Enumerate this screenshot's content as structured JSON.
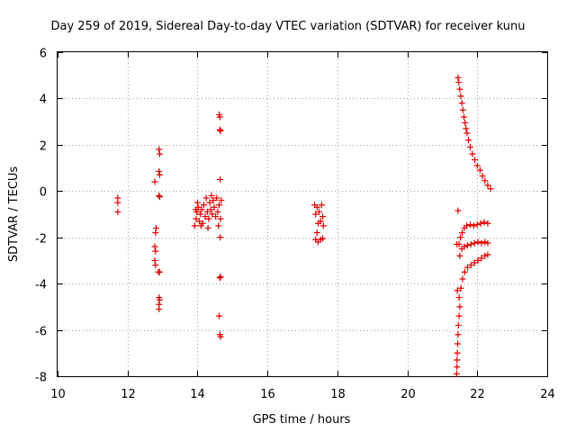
{
  "chart_data": {
    "type": "scatter",
    "title": "Day 259 of 2019, Sidereal Day-to-day VTEC variation (SDTVAR) for receiver kunu",
    "xlabel": "GPS time / hours",
    "ylabel": "SDTVAR / TECUs",
    "xlim": [
      10,
      24
    ],
    "ylim": [
      -8,
      6
    ],
    "xticks": [
      "10",
      "12",
      "14",
      "16",
      "18",
      "20",
      "22",
      "24"
    ],
    "yticks": [
      "-8",
      "-6",
      "-4",
      "-2",
      "0",
      "2",
      "4",
      "6"
    ],
    "grid": true,
    "marker": "plus",
    "color": "#e00000",
    "series": [
      {
        "name": "SDTVAR",
        "points": [
          [
            11.72,
            -0.3
          ],
          [
            11.72,
            -0.5
          ],
          [
            11.72,
            -0.9
          ],
          [
            12.78,
            0.4
          ],
          [
            12.82,
            -1.6
          ],
          [
            12.8,
            -1.8
          ],
          [
            12.78,
            -2.4
          ],
          [
            12.8,
            -2.6
          ],
          [
            12.78,
            -3.0
          ],
          [
            12.8,
            -3.2
          ],
          [
            12.9,
            1.8
          ],
          [
            12.92,
            1.6
          ],
          [
            12.9,
            0.85
          ],
          [
            12.92,
            0.7
          ],
          [
            12.9,
            -0.2
          ],
          [
            12.92,
            -0.25
          ],
          [
            12.88,
            -3.5
          ],
          [
            12.92,
            -3.5
          ],
          [
            12.9,
            -4.6
          ],
          [
            12.92,
            -4.7
          ],
          [
            12.9,
            -4.9
          ],
          [
            12.9,
            -5.1
          ],
          [
            13.92,
            -1.5
          ],
          [
            13.96,
            -1.2
          ],
          [
            13.98,
            -0.9
          ],
          [
            14.02,
            -0.7
          ],
          [
            14.05,
            -1.3
          ],
          [
            14.08,
            -1.0
          ],
          [
            14.12,
            -0.8
          ],
          [
            14.15,
            -1.4
          ],
          [
            14.18,
            -0.6
          ],
          [
            14.22,
            -1.1
          ],
          [
            14.25,
            -0.3
          ],
          [
            14.28,
            -0.9
          ],
          [
            14.32,
            -1.2
          ],
          [
            14.35,
            -0.5
          ],
          [
            14.38,
            -0.8
          ],
          [
            14.42,
            -1.0
          ],
          [
            14.45,
            -0.4
          ],
          [
            14.48,
            -0.7
          ],
          [
            14.52,
            -1.1
          ],
          [
            14.55,
            -0.3
          ],
          [
            14.58,
            -0.9
          ],
          [
            14.62,
            -0.6
          ],
          [
            14.66,
            -1.2
          ],
          [
            14.68,
            -0.4
          ],
          [
            14.0,
            -0.5
          ],
          [
            14.1,
            -1.5
          ],
          [
            14.3,
            -1.6
          ],
          [
            14.4,
            -0.2
          ],
          [
            14.6,
            -1.5
          ],
          [
            13.95,
            -0.8
          ],
          [
            14.62,
            3.3
          ],
          [
            14.64,
            3.2
          ],
          [
            14.64,
            2.65
          ],
          [
            14.66,
            2.6
          ],
          [
            14.65,
            0.5
          ],
          [
            14.65,
            -2.0
          ],
          [
            14.66,
            -3.7
          ],
          [
            14.64,
            -3.75
          ],
          [
            14.62,
            -5.4
          ],
          [
            14.64,
            -6.2
          ],
          [
            14.66,
            -6.3
          ],
          [
            17.35,
            -0.6
          ],
          [
            17.38,
            -1.0
          ],
          [
            17.42,
            -0.7
          ],
          [
            17.45,
            -1.4
          ],
          [
            17.48,
            -0.9
          ],
          [
            17.52,
            -1.3
          ],
          [
            17.55,
            -0.6
          ],
          [
            17.58,
            -1.1
          ],
          [
            17.6,
            -1.5
          ],
          [
            17.42,
            -1.8
          ],
          [
            17.38,
            -2.1
          ],
          [
            17.45,
            -2.2
          ],
          [
            17.52,
            -2.1
          ],
          [
            17.58,
            -2.05
          ],
          [
            21.45,
            4.9
          ],
          [
            21.47,
            4.7
          ],
          [
            21.5,
            4.4
          ],
          [
            21.53,
            4.1
          ],
          [
            21.56,
            3.8
          ],
          [
            21.59,
            3.5
          ],
          [
            21.62,
            3.2
          ],
          [
            21.65,
            2.95
          ],
          [
            21.68,
            2.7
          ],
          [
            21.71,
            2.5
          ],
          [
            21.75,
            2.2
          ],
          [
            21.8,
            1.9
          ],
          [
            21.86,
            1.6
          ],
          [
            21.93,
            1.35
          ],
          [
            22.0,
            1.1
          ],
          [
            22.08,
            0.9
          ],
          [
            22.15,
            0.65
          ],
          [
            22.22,
            0.45
          ],
          [
            22.3,
            0.25
          ],
          [
            22.38,
            0.1
          ],
          [
            21.45,
            -0.85
          ],
          [
            21.42,
            -2.3
          ],
          [
            21.43,
            -4.3
          ],
          [
            21.48,
            -2.3
          ],
          [
            21.52,
            -2.0
          ],
          [
            21.57,
            -1.8
          ],
          [
            21.63,
            -1.6
          ],
          [
            21.7,
            -1.5
          ],
          [
            21.8,
            -1.45
          ],
          [
            21.9,
            -1.5
          ],
          [
            22.0,
            -1.45
          ],
          [
            22.1,
            -1.4
          ],
          [
            22.2,
            -1.35
          ],
          [
            22.3,
            -1.4
          ],
          [
            21.5,
            -2.8
          ],
          [
            21.56,
            -2.5
          ],
          [
            21.63,
            -2.4
          ],
          [
            21.72,
            -2.35
          ],
          [
            21.82,
            -2.3
          ],
          [
            21.92,
            -2.25
          ],
          [
            22.02,
            -2.2
          ],
          [
            22.12,
            -2.25
          ],
          [
            22.22,
            -2.2
          ],
          [
            22.3,
            -2.25
          ],
          [
            21.48,
            -4.6
          ],
          [
            21.53,
            -4.2
          ],
          [
            21.58,
            -3.8
          ],
          [
            21.64,
            -3.5
          ],
          [
            21.72,
            -3.3
          ],
          [
            21.82,
            -3.2
          ],
          [
            21.92,
            -3.1
          ],
          [
            22.02,
            -3.0
          ],
          [
            22.12,
            -2.9
          ],
          [
            22.22,
            -2.8
          ],
          [
            22.3,
            -2.75
          ],
          [
            21.5,
            -5.0
          ],
          [
            21.48,
            -5.4
          ],
          [
            21.46,
            -5.8
          ],
          [
            21.45,
            -6.2
          ],
          [
            21.44,
            -6.6
          ],
          [
            21.43,
            -7.0
          ],
          [
            21.42,
            -7.3
          ],
          [
            21.42,
            -7.6
          ],
          [
            21.41,
            -7.9
          ]
        ]
      }
    ]
  }
}
